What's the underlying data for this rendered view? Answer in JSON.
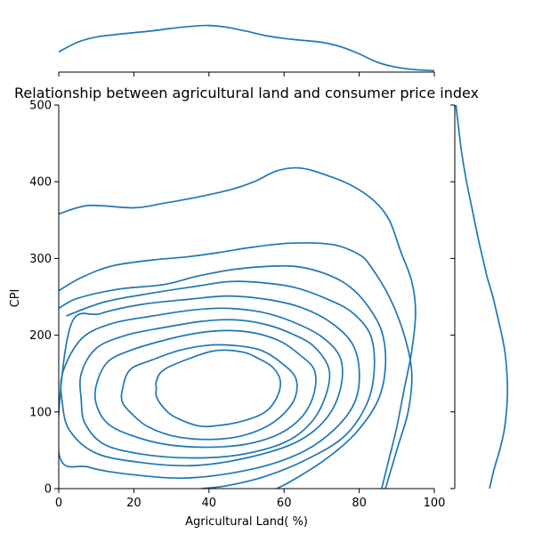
{
  "chart_data": {
    "type": "kde-joint",
    "title": "Relationship between agricultural land and consumer price index",
    "xlabel": "Agricultural Land( %)",
    "ylabel": "CPI",
    "xlim": [
      0,
      100
    ],
    "ylim": [
      0,
      500
    ],
    "xticks": [
      0,
      20,
      40,
      60,
      80,
      100
    ],
    "yticks": [
      0,
      100,
      200,
      300,
      400,
      500
    ],
    "color": "#1f77b4",
    "center": [
      40,
      130
    ],
    "contours": [
      {
        "level": 1,
        "points": [
          [
            26,
            140
          ],
          [
            28,
            155
          ],
          [
            35,
            170
          ],
          [
            42,
            180
          ],
          [
            49,
            178
          ],
          [
            53,
            170
          ],
          [
            57,
            158
          ],
          [
            59,
            140
          ],
          [
            58,
            118
          ],
          [
            55,
            100
          ],
          [
            49,
            88
          ],
          [
            42,
            82
          ],
          [
            37,
            82
          ],
          [
            31,
            93
          ],
          [
            28,
            105
          ],
          [
            26,
            120
          ],
          [
            26,
            130
          ]
        ]
      },
      {
        "level": 2,
        "points": [
          [
            19,
            155
          ],
          [
            25,
            168
          ],
          [
            32,
            180
          ],
          [
            40,
            187
          ],
          [
            48,
            186
          ],
          [
            54,
            180
          ],
          [
            59,
            165
          ],
          [
            63,
            145
          ],
          [
            63,
            120
          ],
          [
            60,
            98
          ],
          [
            55,
            80
          ],
          [
            48,
            68
          ],
          [
            40,
            64
          ],
          [
            31,
            68
          ],
          [
            24,
            80
          ],
          [
            20,
            95
          ],
          [
            17,
            112
          ],
          [
            17,
            130
          ]
        ]
      },
      {
        "level": 3,
        "points": [
          [
            13,
            165
          ],
          [
            19,
            180
          ],
          [
            27,
            192
          ],
          [
            36,
            202
          ],
          [
            44,
            206
          ],
          [
            52,
            203
          ],
          [
            59,
            192
          ],
          [
            64,
            175
          ],
          [
            68,
            155
          ],
          [
            68,
            125
          ],
          [
            65,
            95
          ],
          [
            59,
            72
          ],
          [
            50,
            58
          ],
          [
            39,
            54
          ],
          [
            28,
            58
          ],
          [
            19,
            70
          ],
          [
            13,
            85
          ],
          [
            10,
            110
          ],
          [
            10,
            135
          ]
        ]
      },
      {
        "level": 4,
        "points": [
          [
            10,
            183
          ],
          [
            18,
            200
          ],
          [
            28,
            210
          ],
          [
            38,
            218
          ],
          [
            47,
            220
          ],
          [
            55,
            214
          ],
          [
            62,
            202
          ],
          [
            68,
            185
          ],
          [
            72,
            155
          ],
          [
            71,
            120
          ],
          [
            67,
            85
          ],
          [
            60,
            60
          ],
          [
            48,
            44
          ],
          [
            35,
            40
          ],
          [
            22,
            45
          ],
          [
            12,
            58
          ],
          [
            7,
            85
          ],
          [
            6,
            115
          ],
          [
            6,
            150
          ]
        ]
      },
      {
        "level": 5,
        "points": [
          [
            6,
            195
          ],
          [
            14,
            215
          ],
          [
            25,
            225
          ],
          [
            36,
            233
          ],
          [
            45,
            235
          ],
          [
            54,
            230
          ],
          [
            62,
            218
          ],
          [
            70,
            198
          ],
          [
            75,
            170
          ],
          [
            75,
            130
          ],
          [
            71,
            90
          ],
          [
            63,
            60
          ],
          [
            50,
            40
          ],
          [
            36,
            30
          ],
          [
            22,
            34
          ],
          [
            10,
            46
          ],
          [
            3,
            75
          ],
          [
            1,
            110
          ],
          [
            1,
            150
          ]
        ]
      },
      {
        "level": 6,
        "points": [
          [
            3,
            210
          ],
          [
            11,
            228
          ],
          [
            22,
            240
          ],
          [
            35,
            247
          ],
          [
            45,
            251
          ],
          [
            55,
            247
          ],
          [
            64,
            237
          ],
          [
            72,
            218
          ],
          [
            78,
            190
          ],
          [
            80,
            155
          ],
          [
            79,
            115
          ],
          [
            74,
            80
          ],
          [
            65,
            48
          ],
          [
            52,
            26
          ],
          [
            35,
            14
          ],
          [
            20,
            18
          ],
          [
            8,
            28
          ],
          [
            0,
            48
          ]
        ]
      },
      {
        "level": 7,
        "points": [
          [
            2,
            225
          ],
          [
            12,
            243
          ],
          [
            25,
            255
          ],
          [
            37,
            264
          ],
          [
            46,
            270
          ],
          [
            55,
            268
          ],
          [
            63,
            262
          ],
          [
            71,
            248
          ],
          [
            78,
            230
          ],
          [
            83,
            200
          ],
          [
            84,
            155
          ],
          [
            82,
            110
          ],
          [
            76,
            68
          ],
          [
            66,
            38
          ],
          [
            55,
            16
          ],
          [
            45,
            4
          ],
          [
            38,
            0
          ]
        ]
      },
      {
        "level": 8,
        "points": [
          [
            0,
            235
          ],
          [
            5,
            248
          ],
          [
            16,
            260
          ],
          [
            28,
            266
          ],
          [
            37,
            277
          ],
          [
            47,
            286
          ],
          [
            57,
            290
          ],
          [
            64,
            289
          ],
          [
            71,
            280
          ],
          [
            77,
            265
          ],
          [
            82,
            240
          ],
          [
            86,
            205
          ],
          [
            87,
            160
          ],
          [
            85,
            115
          ],
          [
            79,
            72
          ],
          [
            71,
            38
          ],
          [
            62,
            10
          ],
          [
            58,
            0
          ]
        ]
      },
      {
        "level": 9,
        "points": [
          [
            0,
            258
          ],
          [
            6,
            275
          ],
          [
            14,
            290
          ],
          [
            25,
            298
          ],
          [
            34,
            302
          ],
          [
            43,
            308
          ],
          [
            52,
            315
          ],
          [
            62,
            320
          ],
          [
            73,
            318
          ],
          [
            80,
            305
          ],
          [
            83,
            290
          ],
          [
            88,
            250
          ],
          [
            92,
            200
          ],
          [
            94,
            150
          ],
          [
            93,
            100
          ],
          [
            90,
            50
          ],
          [
            87,
            0
          ]
        ]
      },
      {
        "level": 10,
        "points": [
          [
            0,
            358
          ],
          [
            8,
            369
          ],
          [
            20,
            366
          ],
          [
            28,
            372
          ],
          [
            37,
            380
          ],
          [
            46,
            390
          ],
          [
            52,
            400
          ],
          [
            58,
            414
          ],
          [
            64,
            418
          ],
          [
            71,
            409
          ],
          [
            78,
            395
          ],
          [
            84,
            375
          ],
          [
            88,
            350
          ],
          [
            91,
            310
          ],
          [
            94,
            270
          ],
          [
            95,
            230
          ],
          [
            94,
            180
          ],
          [
            92,
            130
          ],
          [
            90,
            80
          ],
          [
            88,
            40
          ],
          [
            86,
            0
          ]
        ]
      }
    ],
    "marginal_x": {
      "x": [
        0,
        5,
        10,
        15,
        20,
        25,
        30,
        35,
        40,
        45,
        50,
        55,
        60,
        65,
        70,
        75,
        80,
        85,
        90,
        95,
        100
      ],
      "density": [
        0.42,
        0.62,
        0.73,
        0.78,
        0.82,
        0.86,
        0.91,
        0.95,
        0.97,
        0.93,
        0.85,
        0.76,
        0.7,
        0.66,
        0.62,
        0.53,
        0.38,
        0.2,
        0.1,
        0.05,
        0.03
      ]
    },
    "marginal_y": {
      "y": [
        0,
        25,
        50,
        75,
        100,
        125,
        150,
        175,
        200,
        225,
        250,
        275,
        300,
        325,
        350,
        375,
        400,
        425,
        450,
        475,
        500
      ],
      "density": [
        0.62,
        0.7,
        0.8,
        0.88,
        0.92,
        0.94,
        0.93,
        0.9,
        0.84,
        0.76,
        0.68,
        0.58,
        0.5,
        0.42,
        0.35,
        0.28,
        0.21,
        0.15,
        0.1,
        0.06,
        0.02
      ]
    }
  }
}
